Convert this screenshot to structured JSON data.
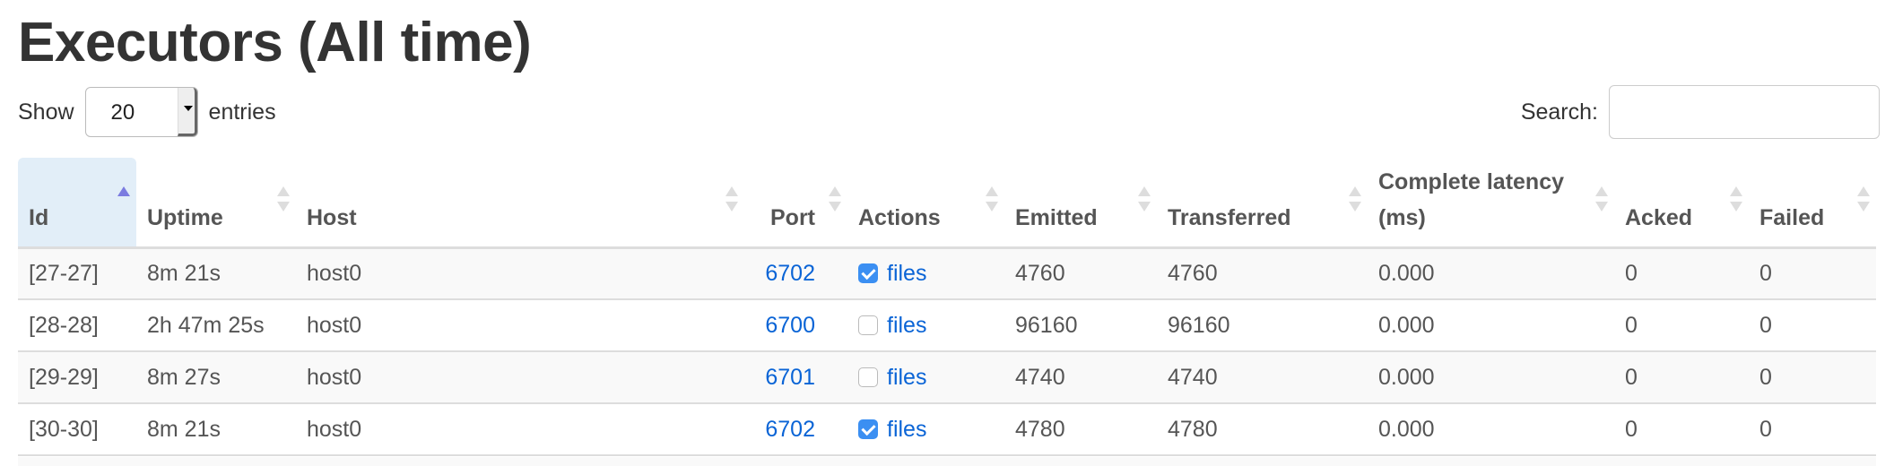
{
  "title": "Executors (All time)",
  "length": {
    "show_label": "Show",
    "value": "20",
    "entries_label": "entries"
  },
  "search": {
    "label": "Search:",
    "value": "",
    "placeholder": ""
  },
  "table": {
    "sorted_column": "Id",
    "sort_direction": "ascending",
    "columns": [
      "Id",
      "Uptime",
      "Host",
      "Port",
      "Actions",
      "Emitted",
      "Transferred",
      "Complete latency (ms)",
      "Acked",
      "Failed"
    ],
    "rows": [
      {
        "id": "[27-27]",
        "uptime": "8m 21s",
        "host": "host0",
        "port": "6702",
        "action_checked": true,
        "action": "files",
        "emitted": "4760",
        "transferred": "4760",
        "latency": "0.000",
        "acked": "0",
        "failed": "0"
      },
      {
        "id": "[28-28]",
        "uptime": "2h 47m 25s",
        "host": "host0",
        "port": "6700",
        "action_checked": false,
        "action": "files",
        "emitted": "96160",
        "transferred": "96160",
        "latency": "0.000",
        "acked": "0",
        "failed": "0"
      },
      {
        "id": "[29-29]",
        "uptime": "8m 27s",
        "host": "host0",
        "port": "6701",
        "action_checked": false,
        "action": "files",
        "emitted": "4740",
        "transferred": "4740",
        "latency": "0.000",
        "acked": "0",
        "failed": "0"
      },
      {
        "id": "[30-30]",
        "uptime": "8m 21s",
        "host": "host0",
        "port": "6702",
        "action_checked": true,
        "action": "files",
        "emitted": "4780",
        "transferred": "4780",
        "latency": "0.000",
        "acked": "0",
        "failed": "0"
      }
    ]
  },
  "colors": {
    "link": "#0a64d6",
    "sorted_header_bg": "#e2eef8",
    "checkbox_on": "#3b8ff2",
    "sort_active": "#7b7be0"
  }
}
